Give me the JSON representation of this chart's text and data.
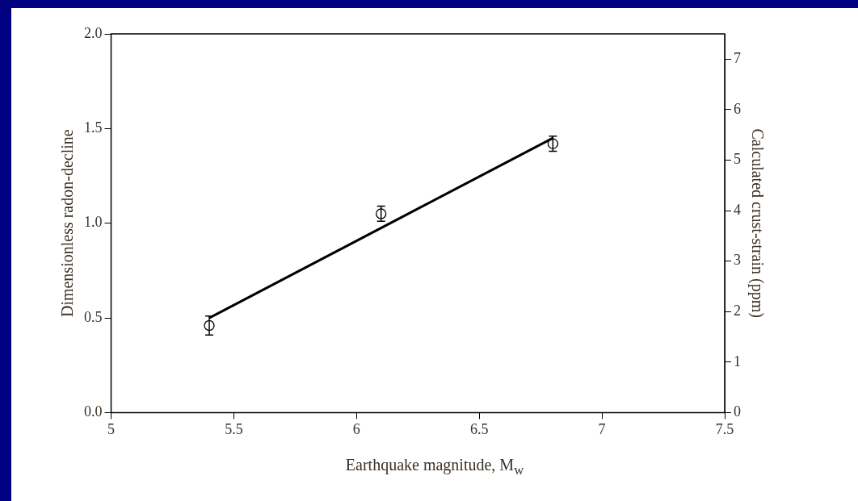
{
  "chart_data": {
    "type": "scatter",
    "xlabel": "Earthquake magnitude, M$_{w}$",
    "ylabel": "Dimensionless radon-decline",
    "y2label": "Calculated crust-strain (ppm)",
    "xlim": [
      5,
      7.5
    ],
    "xticks": [
      5,
      5.5,
      6,
      6.5,
      7,
      7.5
    ],
    "ylim": [
      0,
      2
    ],
    "yticks": [
      {
        "value": 0,
        "label": "0.0"
      },
      {
        "value": 0.5,
        "label": "0.5"
      },
      {
        "value": 1,
        "label": "1.0"
      },
      {
        "value": 1.5,
        "label": "1.5"
      },
      {
        "value": 2,
        "label": "2.0"
      }
    ],
    "y2lim": [
      0,
      7.5
    ],
    "y2ticks": [
      0,
      1,
      2,
      3,
      4,
      5,
      6,
      7
    ],
    "grid": false,
    "legend": false,
    "marker": "circle",
    "series": [
      {
        "color": "#000000",
        "x": [
          5.4,
          6.1,
          6.8
        ],
        "values": [
          0.46,
          1.05,
          1.42
        ],
        "errors": [
          0.05,
          0.04,
          0.04
        ]
      },
      {
        "type": "line",
        "color": "#000000",
        "x": [
          5.4,
          6.8
        ],
        "values": [
          0.5,
          1.45
        ],
        "marker": "none",
        "line_style": "solid"
      }
    ]
  }
}
